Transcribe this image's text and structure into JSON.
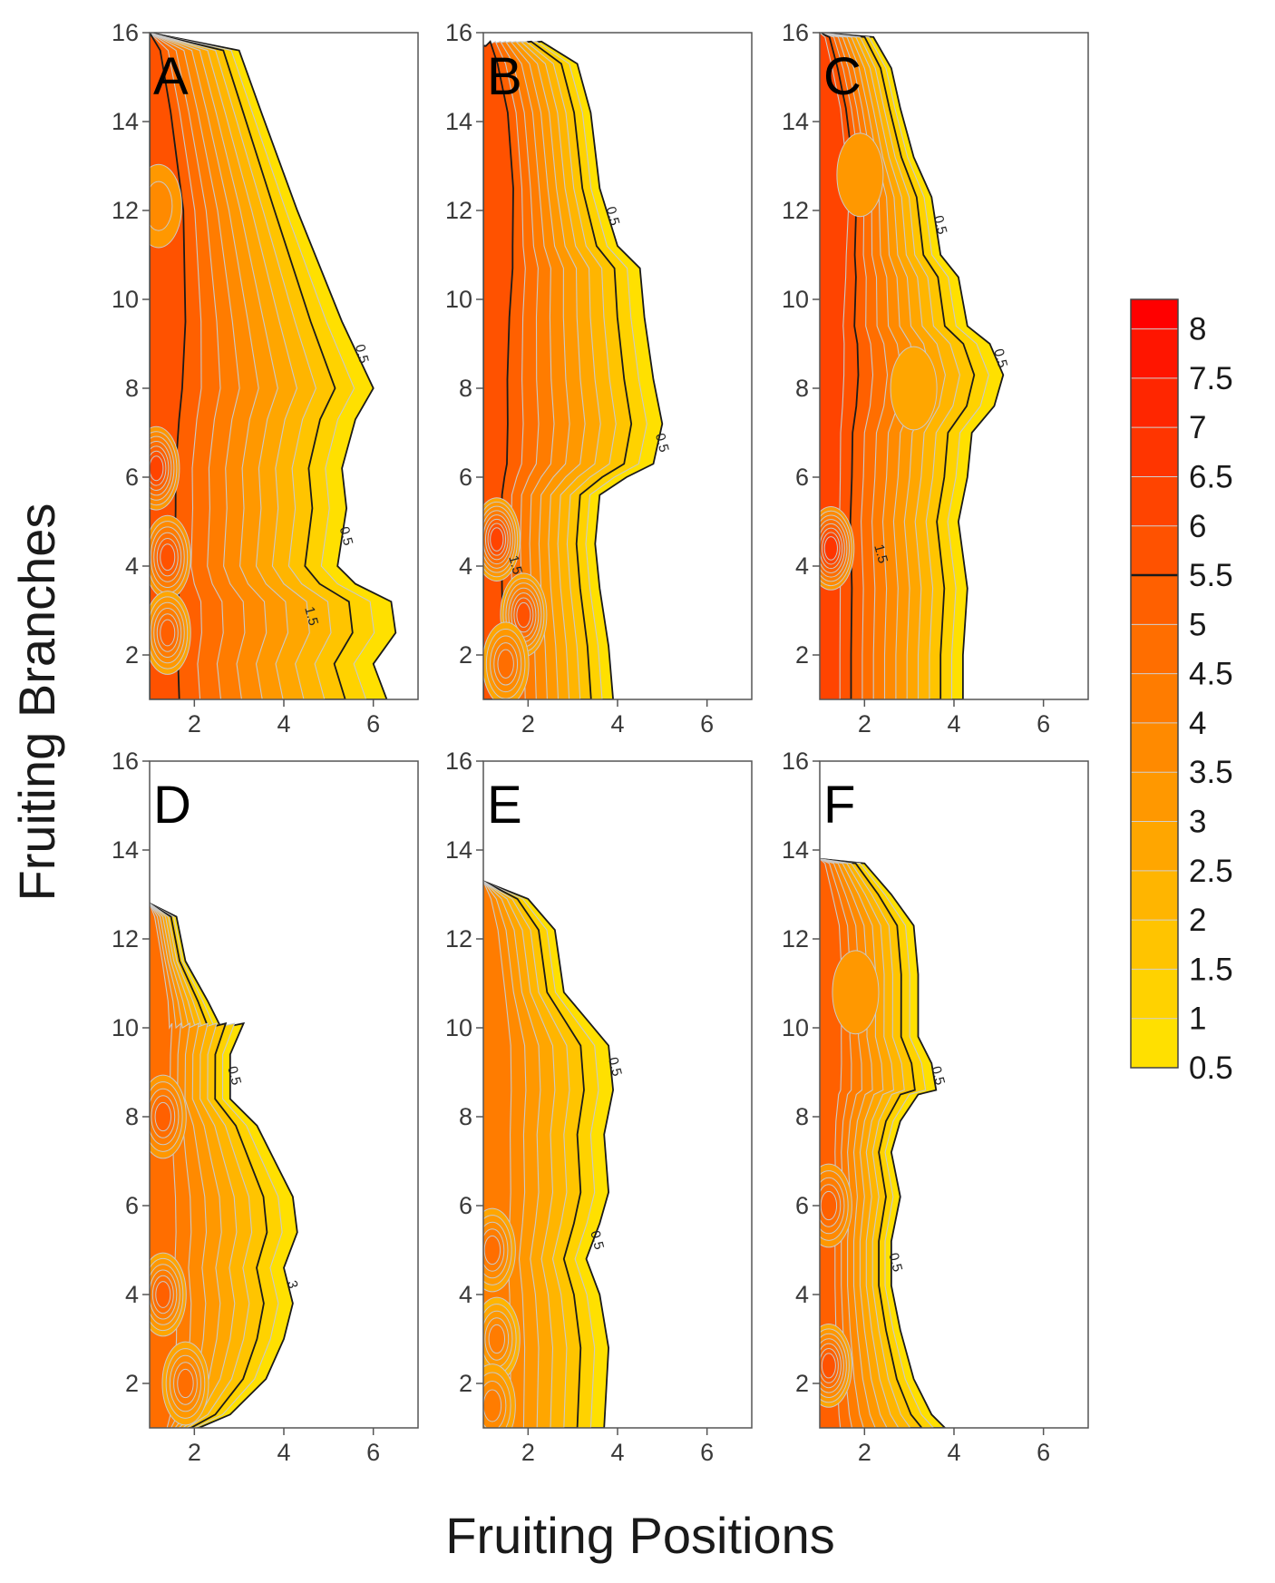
{
  "chart_data": {
    "type": "heatmap",
    "title": "",
    "xlabel": "Fruiting Positions",
    "ylabel": "Fruiting Branches",
    "xlim": [
      1,
      7
    ],
    "ylim": [
      1,
      16
    ],
    "x_ticks": [
      2,
      4,
      6
    ],
    "y_ticks": [
      2,
      4,
      6,
      8,
      10,
      12,
      14,
      16
    ],
    "colorbar": {
      "min": 0.5,
      "max": 8.3,
      "labels": [
        "8",
        "7.5",
        "7",
        "6.5",
        "6",
        "5.5",
        "5",
        "4.5",
        "4",
        "3.5",
        "3",
        "2.5",
        "2",
        "1.5",
        "1",
        "0.5"
      ],
      "colors": [
        "#ffe000",
        "#ffd200",
        "#ffc400",
        "#ffb500",
        "#ffa600",
        "#ff9800",
        "#ff8a00",
        "#ff7c00",
        "#ff6e00",
        "#ff6000",
        "#ff5200",
        "#ff4400",
        "#ff3500",
        "#ff2600",
        "#ff1500",
        "#ff0000"
      ]
    },
    "panels": [
      {
        "label": "A",
        "max_value": 6.0,
        "contour_labels": [
          "0.5",
          "0.5",
          "1.5"
        ],
        "boundary": [
          [
            1,
            16
          ],
          [
            3,
            15.6
          ],
          [
            3.5,
            14.2
          ],
          [
            4.3,
            12
          ],
          [
            5.3,
            9.5
          ],
          [
            6,
            8
          ],
          [
            5.6,
            7.3
          ],
          [
            5.3,
            6.2
          ],
          [
            5.4,
            5.3
          ],
          [
            5.2,
            4
          ],
          [
            5.6,
            3.6
          ],
          [
            6.4,
            3.2
          ],
          [
            6.5,
            2.5
          ],
          [
            6,
            1.8
          ],
          [
            6.3,
            1
          ]
        ],
        "ridge": [
          [
            1,
            16
          ],
          [
            1.3,
            14
          ],
          [
            1.5,
            12
          ],
          [
            1.5,
            10
          ],
          [
            1.3,
            8
          ],
          [
            1.2,
            6
          ],
          [
            1.2,
            4
          ],
          [
            1.2,
            2
          ],
          [
            1.2,
            1
          ]
        ],
        "hotspots": [
          {
            "x": 1.15,
            "y": 6.2,
            "v": 6.0
          },
          {
            "x": 1.4,
            "y": 4.2,
            "v": 5.6
          },
          {
            "x": 1.2,
            "y": 12.1,
            "v": 3.5
          },
          {
            "x": 1.4,
            "y": 2.5,
            "v": 5.3
          }
        ]
      },
      {
        "label": "B",
        "max_value": 6.3,
        "contour_labels": [
          "0.5",
          "0.5",
          "1.5"
        ],
        "boundary": [
          [
            1,
            15.7
          ],
          [
            2.3,
            15.8
          ],
          [
            3.1,
            15.3
          ],
          [
            3.4,
            14.2
          ],
          [
            3.6,
            12.5
          ],
          [
            4,
            11.2
          ],
          [
            4.5,
            10.7
          ],
          [
            4.6,
            9.6
          ],
          [
            4.8,
            8.2
          ],
          [
            5,
            7.2
          ],
          [
            4.8,
            6.3
          ],
          [
            4.2,
            6
          ],
          [
            3.6,
            5.6
          ],
          [
            3.5,
            4.5
          ],
          [
            3.6,
            3.5
          ],
          [
            3.8,
            2.2
          ],
          [
            3.9,
            1
          ]
        ],
        "ridge": [
          [
            1,
            16
          ],
          [
            1.4,
            14
          ],
          [
            1.5,
            12
          ],
          [
            1.3,
            10
          ],
          [
            1.2,
            8
          ],
          [
            1.2,
            6
          ],
          [
            1.2,
            4
          ],
          [
            1.2,
            2
          ],
          [
            1.2,
            1
          ]
        ],
        "hotspots": [
          {
            "x": 1.3,
            "y": 4.6,
            "v": 6.3
          },
          {
            "x": 1.9,
            "y": 2.9,
            "v": 5.9
          },
          {
            "x": 1.5,
            "y": 1.8,
            "v": 4.8
          }
        ]
      },
      {
        "label": "C",
        "max_value": 6.8,
        "contour_labels": [
          "0.5",
          "0.5",
          "1.5"
        ],
        "boundary": [
          [
            1,
            16
          ],
          [
            2.2,
            15.9
          ],
          [
            2.6,
            15.2
          ],
          [
            2.8,
            14.3
          ],
          [
            3.1,
            13.2
          ],
          [
            3.5,
            12.3
          ],
          [
            3.7,
            11
          ],
          [
            4.1,
            10.5
          ],
          [
            4.3,
            9.4
          ],
          [
            4.8,
            9
          ],
          [
            5.1,
            8.3
          ],
          [
            4.9,
            7.6
          ],
          [
            4.4,
            7
          ],
          [
            4.3,
            6
          ],
          [
            4.1,
            5
          ],
          [
            4.3,
            3.5
          ],
          [
            4.2,
            2
          ],
          [
            4.2,
            1
          ]
        ],
        "ridge": [
          [
            1,
            16
          ],
          [
            1.4,
            14
          ],
          [
            1.5,
            12
          ],
          [
            1.3,
            10
          ],
          [
            1.2,
            8
          ],
          [
            1.2,
            6
          ],
          [
            1.2,
            4
          ],
          [
            1.2,
            2
          ],
          [
            1.2,
            1
          ]
        ],
        "hotspots": [
          {
            "x": 1.25,
            "y": 4.4,
            "v": 6.8
          },
          {
            "x": 1.9,
            "y": 12.8,
            "v": 3.0
          },
          {
            "x": 3.1,
            "y": 8.0,
            "v": 2.6
          }
        ]
      },
      {
        "label": "D",
        "max_value": 5.3,
        "contour_labels": [
          "0.5",
          "3"
        ],
        "boundary": [
          [
            1,
            12.8
          ],
          [
            1.6,
            12.5
          ],
          [
            1.8,
            11.5
          ],
          [
            2.3,
            10.6
          ],
          [
            2.6,
            10
          ],
          [
            3.1,
            10.1
          ],
          [
            2.8,
            9.4
          ],
          [
            2.8,
            8.4
          ],
          [
            3.4,
            7.8
          ],
          [
            3.8,
            7
          ],
          [
            4.2,
            6.2
          ],
          [
            4.3,
            5.4
          ],
          [
            4,
            4.6
          ],
          [
            4.2,
            3.8
          ],
          [
            4,
            3
          ],
          [
            3.6,
            2.1
          ],
          [
            2.8,
            1.3
          ],
          [
            2.1,
            1
          ]
        ],
        "ridge": [
          [
            1,
            12.8
          ],
          [
            1.3,
            11
          ],
          [
            1.3,
            9
          ],
          [
            1.25,
            7
          ],
          [
            1.25,
            5
          ],
          [
            1.3,
            3
          ],
          [
            1.3,
            1
          ]
        ],
        "hotspots": [
          {
            "x": 1.3,
            "y": 8.0,
            "v": 5.2
          },
          {
            "x": 1.3,
            "y": 4.0,
            "v": 5.3
          },
          {
            "x": 1.8,
            "y": 2.0,
            "v": 4.9
          }
        ]
      },
      {
        "label": "E",
        "max_value": 4.6,
        "contour_labels": [
          "0.5",
          "0.5"
        ],
        "boundary": [
          [
            1,
            13.3
          ],
          [
            2,
            12.9
          ],
          [
            2.6,
            12.2
          ],
          [
            2.8,
            10.8
          ],
          [
            3.3,
            10.2
          ],
          [
            3.8,
            9.6
          ],
          [
            3.9,
            8.6
          ],
          [
            3.7,
            7.6
          ],
          [
            3.8,
            6.3
          ],
          [
            3.6,
            5.6
          ],
          [
            3.3,
            4.8
          ],
          [
            3.6,
            4
          ],
          [
            3.8,
            2.8
          ],
          [
            3.7,
            1
          ]
        ],
        "ridge": [
          [
            1,
            13.3
          ],
          [
            1.3,
            11
          ],
          [
            1.3,
            9
          ],
          [
            1.3,
            7
          ],
          [
            1.3,
            5
          ],
          [
            1.3,
            3
          ],
          [
            1.3,
            1
          ]
        ],
        "hotspots": [
          {
            "x": 1.2,
            "y": 5.0,
            "v": 4.6
          },
          {
            "x": 1.3,
            "y": 3.0,
            "v": 4.3
          },
          {
            "x": 1.2,
            "y": 1.5,
            "v": 4.1
          }
        ]
      },
      {
        "label": "F",
        "max_value": 5.8,
        "contour_labels": [
          "0.5",
          "0.5"
        ],
        "boundary": [
          [
            1,
            13.8
          ],
          [
            2,
            13.7
          ],
          [
            2.6,
            13
          ],
          [
            3.1,
            12.3
          ],
          [
            3.2,
            11.2
          ],
          [
            3.2,
            9.8
          ],
          [
            3.5,
            9.2
          ],
          [
            3.6,
            8.6
          ],
          [
            3.2,
            8.5
          ],
          [
            2.8,
            7.9
          ],
          [
            2.6,
            7.2
          ],
          [
            2.8,
            6.2
          ],
          [
            2.6,
            5.2
          ],
          [
            2.6,
            4.2
          ],
          [
            2.8,
            3.2
          ],
          [
            3.1,
            2.1
          ],
          [
            3.5,
            1.3
          ],
          [
            3.8,
            1
          ]
        ],
        "ridge": [
          [
            1,
            13.8
          ],
          [
            1.3,
            12
          ],
          [
            1.3,
            10
          ],
          [
            1.2,
            8
          ],
          [
            1.2,
            6
          ],
          [
            1.2,
            4
          ],
          [
            1.2,
            2
          ],
          [
            1.2,
            1
          ]
        ],
        "hotspots": [
          {
            "x": 1.2,
            "y": 2.4,
            "v": 5.8
          },
          {
            "x": 1.2,
            "y": 6.0,
            "v": 5.0
          },
          {
            "x": 1.8,
            "y": 10.8,
            "v": 3.2
          }
        ]
      }
    ]
  }
}
